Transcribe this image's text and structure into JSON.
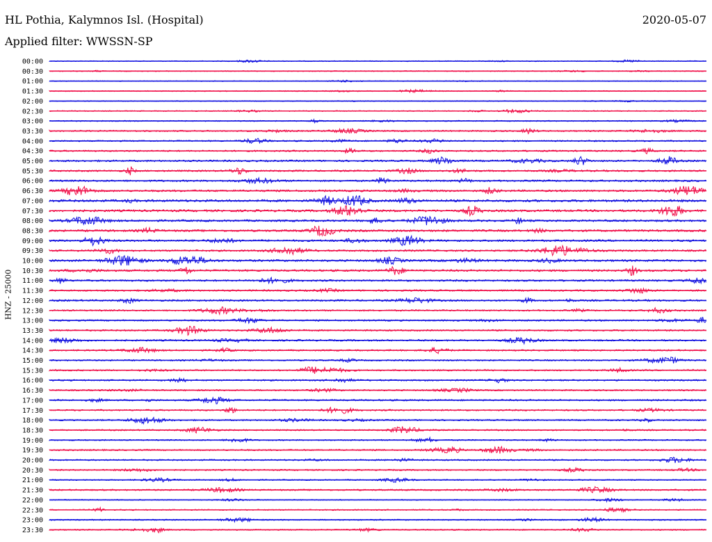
{
  "header": {
    "station": "HL Pothia, Kalymnos Isl. (Hospital)",
    "date": "2020-05-07",
    "filter": "Applied filter: WWSSN-SP",
    "channel_label": "HNZ - 25000"
  },
  "colors": {
    "blue": "#1010e0",
    "red": "#f0104a",
    "baseline": "#000000"
  },
  "chart_data": {
    "type": "line",
    "title": "HL Pothia, Kalymnos Isl. (Hospital)",
    "ylabel": "HNZ - 25000",
    "rows": [
      {
        "label": "00:00",
        "color": "blue",
        "level": 0.15
      },
      {
        "label": "00:30",
        "color": "red",
        "level": 0.18
      },
      {
        "label": "01:00",
        "color": "blue",
        "level": 0.1
      },
      {
        "label": "01:30",
        "color": "red",
        "level": 0.18
      },
      {
        "label": "02:00",
        "color": "blue",
        "level": 0.14
      },
      {
        "label": "02:30",
        "color": "red",
        "level": 0.22
      },
      {
        "label": "03:00",
        "color": "blue",
        "level": 0.25
      },
      {
        "label": "03:30",
        "color": "red",
        "level": 0.45
      },
      {
        "label": "04:00",
        "color": "blue",
        "level": 0.4
      },
      {
        "label": "04:30",
        "color": "red",
        "level": 0.5
      },
      {
        "label": "05:00",
        "color": "blue",
        "level": 0.6
      },
      {
        "label": "05:30",
        "color": "red",
        "level": 0.55
      },
      {
        "label": "06:00",
        "color": "blue",
        "level": 0.6
      },
      {
        "label": "06:30",
        "color": "red",
        "level": 0.7
      },
      {
        "label": "07:00",
        "color": "blue",
        "level": 0.85
      },
      {
        "label": "07:30",
        "color": "red",
        "level": 0.8
      },
      {
        "label": "08:00",
        "color": "blue",
        "level": 0.7
      },
      {
        "label": "08:30",
        "color": "red",
        "level": 0.75
      },
      {
        "label": "09:00",
        "color": "blue",
        "level": 0.7
      },
      {
        "label": "09:30",
        "color": "red",
        "level": 0.6
      },
      {
        "label": "10:00",
        "color": "blue",
        "level": 0.75
      },
      {
        "label": "10:30",
        "color": "red",
        "level": 0.7
      },
      {
        "label": "11:00",
        "color": "blue",
        "level": 0.6
      },
      {
        "label": "11:30",
        "color": "red",
        "level": 0.55
      },
      {
        "label": "12:00",
        "color": "blue",
        "level": 0.6
      },
      {
        "label": "12:30",
        "color": "red",
        "level": 0.5
      },
      {
        "label": "13:00",
        "color": "blue",
        "level": 0.5
      },
      {
        "label": "13:30",
        "color": "red",
        "level": 0.5
      },
      {
        "label": "14:00",
        "color": "blue",
        "level": 0.55
      },
      {
        "label": "14:30",
        "color": "red",
        "level": 0.45
      },
      {
        "label": "15:00",
        "color": "blue",
        "level": 0.45
      },
      {
        "label": "15:30",
        "color": "red",
        "level": 0.45
      },
      {
        "label": "16:00",
        "color": "blue",
        "level": 0.45
      },
      {
        "label": "16:30",
        "color": "red",
        "level": 0.45
      },
      {
        "label": "17:00",
        "color": "blue",
        "level": 0.5
      },
      {
        "label": "17:30",
        "color": "red",
        "level": 0.45
      },
      {
        "label": "18:00",
        "color": "blue",
        "level": 0.45
      },
      {
        "label": "18:30",
        "color": "red",
        "level": 0.4
      },
      {
        "label": "19:00",
        "color": "blue",
        "level": 0.35
      },
      {
        "label": "19:30",
        "color": "red",
        "level": 0.45
      },
      {
        "label": "20:00",
        "color": "blue",
        "level": 0.4
      },
      {
        "label": "20:30",
        "color": "red",
        "level": 0.4
      },
      {
        "label": "21:00",
        "color": "blue",
        "level": 0.3
      },
      {
        "label": "21:30",
        "color": "red",
        "level": 0.45
      },
      {
        "label": "22:00",
        "color": "blue",
        "level": 0.2
      },
      {
        "label": "22:30",
        "color": "red",
        "level": 0.3
      },
      {
        "label": "23:00",
        "color": "blue",
        "level": 0.3
      },
      {
        "label": "23:30",
        "color": "red",
        "level": 0.35
      }
    ]
  }
}
